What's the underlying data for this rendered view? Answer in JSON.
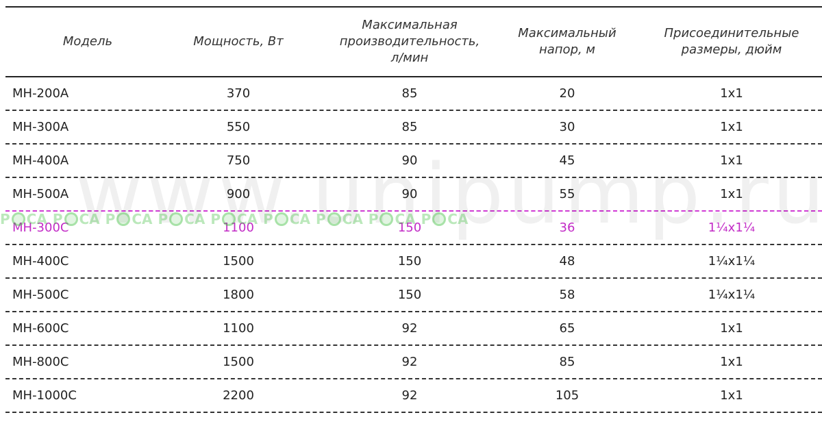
{
  "watermark": "www.unipump.ru",
  "band_logo": "РОСА",
  "colors": {
    "highlight": "#c22bc6",
    "watermark_green": "#3cbe3c"
  },
  "headers": [
    "Модель",
    "Мощность, Вт",
    "Максимальная производительность, л/мин",
    "Максимальный напор, м",
    "Присоединительные размеры, дюйм"
  ],
  "rows": [
    [
      "МН-200А",
      "370",
      "85",
      "20",
      "1x1"
    ],
    [
      "МН-300А",
      "550",
      "85",
      "30",
      "1x1"
    ],
    [
      "МН-400А",
      "750",
      "90",
      "45",
      "1x1"
    ],
    [
      "МН-500А",
      "900",
      "90",
      "55",
      "1x1"
    ],
    [
      "МН-300С",
      "1100",
      "150",
      "36",
      "1¼x1¼"
    ],
    [
      "МН-400С",
      "1500",
      "150",
      "48",
      "1¼x1¼"
    ],
    [
      "МН-500С",
      "1800",
      "150",
      "58",
      "1¼x1¼"
    ],
    [
      "МН-600С",
      "1100",
      "92",
      "65",
      "1x1"
    ],
    [
      "МН-800С",
      "1500",
      "92",
      "85",
      "1x1"
    ],
    [
      "МН-1000С",
      "2200",
      "92",
      "105",
      "1x1"
    ]
  ]
}
